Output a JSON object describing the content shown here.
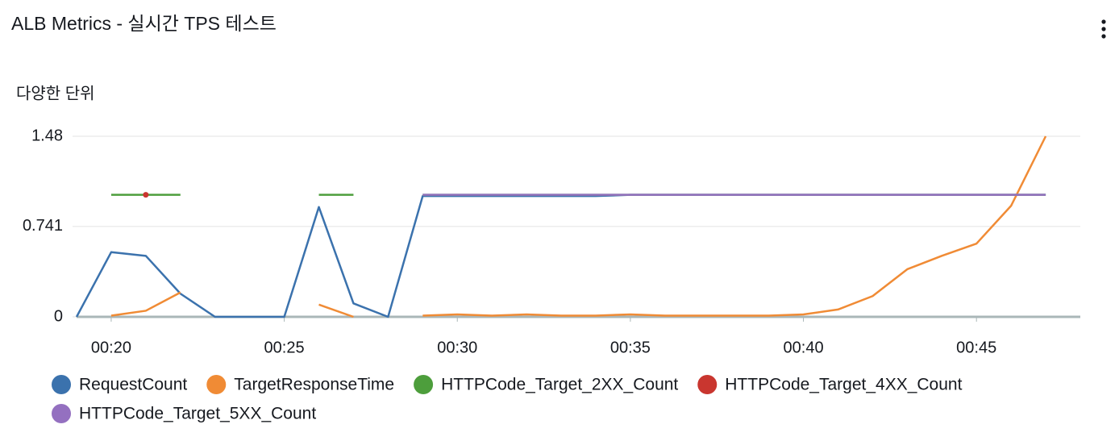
{
  "chart_data": {
    "type": "line",
    "title": "ALB Metrics - 실시간 TPS 테스트",
    "y_label": "다양한 단위",
    "x": [
      19,
      20,
      21,
      22,
      23,
      24,
      25,
      26,
      27,
      28,
      29,
      30,
      31,
      32,
      33,
      34,
      35,
      36,
      37,
      38,
      39,
      40,
      41,
      42,
      43,
      44,
      45,
      46,
      47
    ],
    "xlim": [
      19,
      48
    ],
    "xticks": [
      {
        "value": 20,
        "label": "00:20"
      },
      {
        "value": 25,
        "label": "00:25"
      },
      {
        "value": 30,
        "label": "00:30"
      },
      {
        "value": 35,
        "label": "00:35"
      },
      {
        "value": 40,
        "label": "00:40"
      },
      {
        "value": 45,
        "label": "00:45"
      }
    ],
    "ylim": [
      0,
      1.48
    ],
    "yticks": [
      0,
      0.741,
      1.48
    ],
    "grid": true,
    "series": [
      {
        "name": "RequestCount",
        "color": "#3b72ad",
        "values": [
          0,
          0.53,
          0.5,
          0.19,
          0,
          0,
          0,
          0.9,
          0.11,
          0,
          0.99,
          0.99,
          0.99,
          0.99,
          0.99,
          0.99,
          1,
          1,
          1,
          1,
          1,
          1,
          1,
          1,
          1,
          1,
          1,
          1,
          1
        ]
      },
      {
        "name": "TargetResponseTime",
        "color": "#f08b35",
        "values": [
          null,
          0.01,
          0.05,
          0.2,
          null,
          null,
          null,
          0.1,
          0,
          null,
          0.01,
          0.02,
          0.01,
          0.02,
          0.01,
          0.01,
          0.02,
          0.01,
          0.01,
          0.01,
          0.01,
          0.02,
          0.06,
          0.17,
          0.39,
          0.5,
          0.6,
          0.91,
          1.48
        ]
      },
      {
        "name": "HTTPCode_Target_2XX_Count",
        "color": "#4d9e3c",
        "values": [
          null,
          1,
          1,
          1,
          null,
          null,
          null,
          1,
          1,
          null,
          1,
          1,
          1,
          1,
          1,
          1,
          1,
          1,
          1,
          1,
          1,
          1,
          1,
          1,
          1,
          1,
          1,
          1,
          1
        ]
      },
      {
        "name": "HTTPCode_Target_4XX_Count",
        "color": "#c9362f",
        "values": [
          null,
          null,
          1,
          null,
          null,
          null,
          null,
          null,
          null,
          null,
          null,
          null,
          null,
          null,
          null,
          null,
          null,
          null,
          null,
          null,
          null,
          null,
          null,
          null,
          null,
          null,
          null,
          null,
          null
        ]
      },
      {
        "name": "HTTPCode_Target_5XX_Count",
        "color": "#9470c0",
        "values": [
          null,
          null,
          null,
          null,
          null,
          null,
          null,
          null,
          null,
          null,
          1,
          1,
          1,
          1,
          1,
          1,
          1,
          1,
          1,
          1,
          1,
          1,
          1,
          1,
          1,
          1,
          1,
          1,
          1
        ]
      }
    ]
  }
}
